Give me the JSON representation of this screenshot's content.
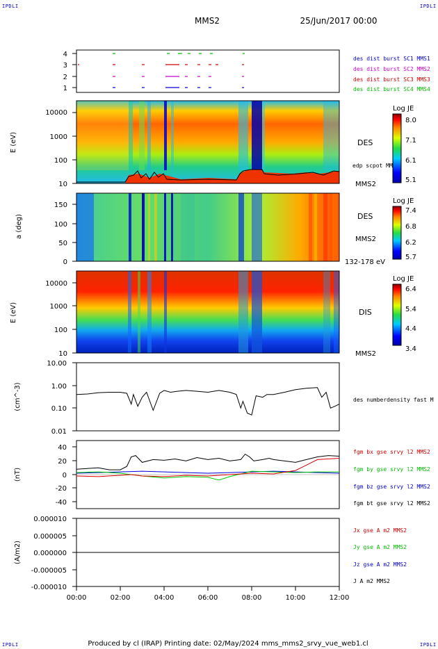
{
  "corner_tag": "IPDLI",
  "header": {
    "spacecraft": "MMS2",
    "datetime": "25/Jun/2017 00:00"
  },
  "footer": "Produced by cl (IRAP)   Printing date: 02/May/2024   mms_mms2_srvy_vue_web1.cl",
  "time_axis": {
    "ticks": [
      "00:00",
      "02:00",
      "04:00",
      "06:00",
      "08:00",
      "10:00",
      "12:00"
    ]
  },
  "panels": {
    "burst": {
      "yticks": [
        "4",
        "3",
        "2",
        "1"
      ],
      "legend": [
        {
          "text": "des dist burst SC1 MMS1",
          "color": "#0000cc"
        },
        {
          "text": "des dist burst SC2 MMS2",
          "color": "#cc00cc"
        },
        {
          "text": "des dist burst SC3 MMS3",
          "color": "#cc0000"
        },
        {
          "text": "des dist burst SC4 MMS4",
          "color": "#00bb00"
        }
      ]
    },
    "des_energy": {
      "ylabel": "E (eV)",
      "yticks": [
        "10000",
        "1000",
        "100",
        "10"
      ],
      "label1": "DES",
      "label2": "edp scpot MMS2",
      "label3": "MMS2",
      "colorbar": {
        "title": "Log JE",
        "ticks": [
          "8.0",
          "7.1",
          "6.1",
          "5.1"
        ]
      }
    },
    "des_pitch": {
      "ylabel": "a (deg)",
      "yticks": [
        "150",
        "100",
        "50",
        "0"
      ],
      "label1": "DES",
      "label2": "MMS2",
      "label3": "132-178 eV",
      "colorbar": {
        "title": "Log JE",
        "ticks": [
          "7.4",
          "6.8",
          "6.2",
          "5.7"
        ]
      }
    },
    "dis_energy": {
      "ylabel": "E (eV)",
      "yticks": [
        "10000",
        "1000",
        "100",
        "10"
      ],
      "label1": "DIS",
      "label2": "MMS2",
      "colorbar": {
        "title": "Log JE",
        "ticks": [
          "6.4",
          "5.4",
          "4.4",
          "3.4"
        ]
      }
    },
    "density": {
      "ylabel": "(cm^-3)",
      "yticks": [
        "10.00",
        "1.00",
        "0.10",
        "0.01"
      ],
      "legend": "des numberdensity fast M"
    },
    "bfield": {
      "ylabel": "(nT)",
      "yticks": [
        "40",
        "20",
        "0",
        "-20",
        "-40"
      ],
      "legend": [
        {
          "text": "fgm bx gse srvy l2 MMS2",
          "color": "#cc0000"
        },
        {
          "text": "fgm by gse srvy l2 MMS2",
          "color": "#00bb00"
        },
        {
          "text": "fgm bz gse srvy l2 MMS2",
          "color": "#0000cc"
        },
        {
          "text": "fgm bt gse srvy l2 MMS2",
          "color": "#000000"
        }
      ]
    },
    "current": {
      "ylabel": "(A/m2)",
      "yticks": [
        "0.000010",
        "0.000005",
        "0.000000",
        "-0.000005",
        "-0.000010"
      ],
      "legend": [
        {
          "text": "Jx gse A m2 MMS2",
          "color": "#cc0000"
        },
        {
          "text": "Jy gse A m2 MMS2",
          "color": "#00bb00"
        },
        {
          "text": "Jz gse A m2 MMS2",
          "color": "#0000cc"
        },
        {
          "text": "J A m2 MMS2",
          "color": "#000000"
        }
      ]
    }
  },
  "chart_data": [
    {
      "type": "line",
      "name": "density",
      "x_hours": [
        0,
        0.5,
        1,
        1.5,
        2,
        2.3,
        2.5,
        2.6,
        2.8,
        3,
        3.2,
        3.5,
        3.8,
        4,
        4.3,
        4.6,
        5,
        5.5,
        6,
        6.5,
        7,
        7.3,
        7.5,
        7.6,
        7.8,
        8,
        8.2,
        8.5,
        8.7,
        9,
        9.5,
        10,
        10.5,
        11,
        11.2,
        11.4,
        11.6,
        11.8,
        12
      ],
      "values": [
        0.4,
        0.42,
        0.48,
        0.5,
        0.5,
        0.45,
        0.15,
        0.4,
        0.12,
        0.3,
        0.5,
        0.08,
        0.45,
        0.6,
        0.5,
        0.55,
        0.6,
        0.55,
        0.5,
        0.6,
        0.5,
        0.4,
        0.1,
        0.2,
        0.06,
        0.05,
        0.35,
        0.3,
        0.4,
        0.4,
        0.5,
        0.65,
        0.75,
        0.8,
        0.3,
        0.5,
        0.1,
        0.12,
        0.15
      ],
      "ylim": [
        0.01,
        10
      ]
    },
    {
      "type": "line",
      "name": "bt",
      "x_hours": [
        0,
        0.5,
        1,
        1.5,
        2,
        2.3,
        2.5,
        2.7,
        3,
        3.5,
        4,
        4.5,
        5,
        5.5,
        6,
        6.5,
        7,
        7.5,
        7.7,
        7.9,
        8.1,
        8.5,
        8.8,
        9,
        9.5,
        10,
        10.5,
        11,
        11.5,
        12
      ],
      "values": [
        8,
        9,
        10,
        7,
        7,
        12,
        26,
        28,
        18,
        22,
        21,
        23,
        20,
        25,
        22,
        24,
        20,
        22,
        30,
        26,
        20,
        22,
        24,
        22,
        20,
        18,
        22,
        26,
        28,
        27
      ],
      "ylim": [
        -50,
        50
      ]
    },
    {
      "type": "line",
      "name": "bx",
      "x_hours": [
        0,
        1,
        2,
        2.5,
        3,
        4,
        5,
        6,
        7,
        8,
        9,
        10,
        10.5,
        11,
        12
      ],
      "values": [
        -2,
        -3,
        -1,
        0,
        -2,
        -3,
        -1,
        -2,
        0,
        2,
        1,
        6,
        14,
        22,
        24
      ],
      "ylim": [
        -50,
        50
      ]
    },
    {
      "type": "line",
      "name": "by",
      "x_hours": [
        0,
        1,
        2,
        3,
        4,
        5,
        6,
        6.5,
        7,
        8,
        9,
        10,
        11,
        12
      ],
      "values": [
        3,
        4,
        2,
        -2,
        -5,
        -3,
        -4,
        -8,
        -3,
        5,
        4,
        3,
        4,
        4
      ],
      "ylim": [
        -50,
        50
      ]
    },
    {
      "type": "line",
      "name": "bz",
      "x_hours": [
        0,
        1,
        2,
        3,
        4,
        5,
        6,
        7,
        8,
        9,
        10,
        11,
        12
      ],
      "values": [
        2,
        3,
        4,
        5,
        4,
        3,
        2,
        3,
        4,
        5,
        4,
        3,
        2
      ],
      "ylim": [
        -50,
        50
      ]
    },
    {
      "type": "line",
      "name": "J",
      "x_hours": [
        0,
        2,
        4,
        6,
        8,
        10,
        12
      ],
      "values": [
        0,
        0,
        0,
        0,
        0,
        0,
        0
      ],
      "ylim": [
        -1e-05,
        1e-05
      ]
    }
  ]
}
